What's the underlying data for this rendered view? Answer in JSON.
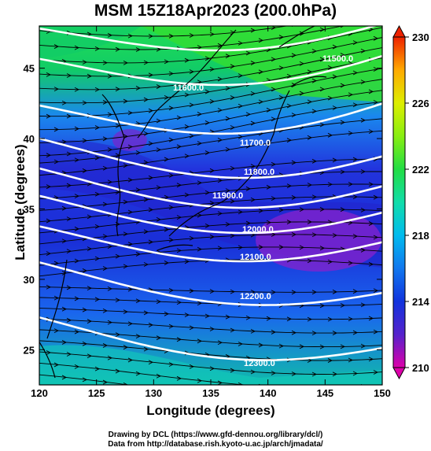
{
  "title": "MSM 15Z18Apr2023 (200.0hPa)",
  "xlabel": "Longitude (degrees)",
  "ylabel": "Latitude  (degrees)",
  "credits": [
    "Drawing by DCL (https://www.gfd-dennou.org/library/dcl/)",
    "Data from http://database.rish.kyoto-u.ac.jp/arch/jmadata/"
  ],
  "map": {
    "lon_range": [
      120,
      150
    ],
    "lat_range": [
      22.5,
      48
    ],
    "x_ticks": [
      "120",
      "125",
      "130",
      "135",
      "140",
      "145",
      "150"
    ],
    "y_ticks": [
      "25",
      "30",
      "35",
      "40",
      "45"
    ],
    "contour_labels": [
      "11500.0",
      "11600.0",
      "11700.0",
      "11800.0",
      "11900.0",
      "12000.0",
      "12100.0",
      "12200.0",
      "12300.0"
    ],
    "colorbar_ticks": [
      "210",
      "214",
      "218",
      "222",
      "226",
      "230"
    ],
    "colorbar_range": [
      210,
      230
    ]
  }
}
